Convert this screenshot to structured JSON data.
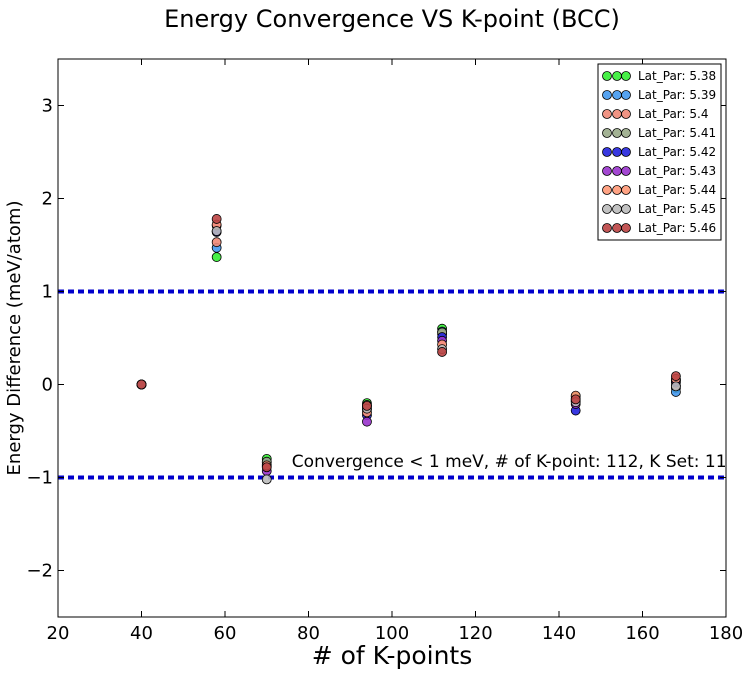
{
  "chart_data": {
    "type": "scatter",
    "title": "Energy Convergence VS K-point (BCC)",
    "xlabel": "# of K-points",
    "ylabel": "Energy Difference (meV/atom)",
    "xlim": [
      20,
      180
    ],
    "ylim": [
      -2.5,
      3.5
    ],
    "xticks": [
      "20",
      "40",
      "60",
      "80",
      "100",
      "120",
      "140",
      "160",
      "180"
    ],
    "yticks": [
      "−2",
      "−1",
      "0",
      "1",
      "2",
      "3"
    ],
    "grid": false,
    "legend_position": "top-right",
    "hlines": [
      {
        "y": 1,
        "color": "#0000cc",
        "style": "dashed"
      },
      {
        "y": -1,
        "color": "#0000cc",
        "style": "dashed"
      }
    ],
    "annotation": {
      "text": "Convergence < 1 meV, # of K-point: 112, K Set: 11",
      "x": 76,
      "y": -0.82
    },
    "x": [
      40,
      58,
      70,
      94,
      112,
      144,
      168
    ],
    "series": [
      {
        "name": "Lat_Par: 5.38",
        "color": "#33ee33",
        "values": [
          0,
          1.37,
          -0.8,
          -0.2,
          0.6,
          -0.13,
          -0.04
        ]
      },
      {
        "name": "Lat_Par: 5.39",
        "color": "#4499ee",
        "values": [
          0,
          1.47,
          -0.84,
          -0.24,
          0.57,
          -0.17,
          -0.08
        ]
      },
      {
        "name": "Lat_Par: 5.4",
        "color": "#ee8877",
        "values": [
          0,
          1.53,
          -0.86,
          -0.27,
          0.54,
          -0.15,
          -0.01
        ]
      },
      {
        "name": "Lat_Par: 5.41",
        "color": "#99aa88",
        "values": [
          0,
          1.65,
          -0.83,
          -0.22,
          0.56,
          -0.18,
          0.05
        ]
      },
      {
        "name": "Lat_Par: 5.42",
        "color": "#2222dd",
        "values": [
          0,
          1.64,
          -0.88,
          -0.33,
          0.51,
          -0.28,
          0.02
        ]
      },
      {
        "name": "Lat_Par: 5.43",
        "color": "#9933cc",
        "values": [
          0,
          1.71,
          -0.93,
          -0.4,
          0.47,
          -0.21,
          0.04
        ]
      },
      {
        "name": "Lat_Par: 5.44",
        "color": "#ff9977",
        "values": [
          0,
          1.72,
          -0.87,
          -0.3,
          0.43,
          -0.12,
          0.06
        ]
      },
      {
        "name": "Lat_Par: 5.45",
        "color": "#bbbbbb",
        "values": [
          0,
          1.65,
          -1.02,
          -0.26,
          0.38,
          -0.19,
          -0.02
        ]
      },
      {
        "name": "Lat_Par: 5.46",
        "color": "#bb4444",
        "values": [
          0,
          1.78,
          -0.89,
          -0.23,
          0.35,
          -0.16,
          0.09
        ]
      }
    ]
  }
}
